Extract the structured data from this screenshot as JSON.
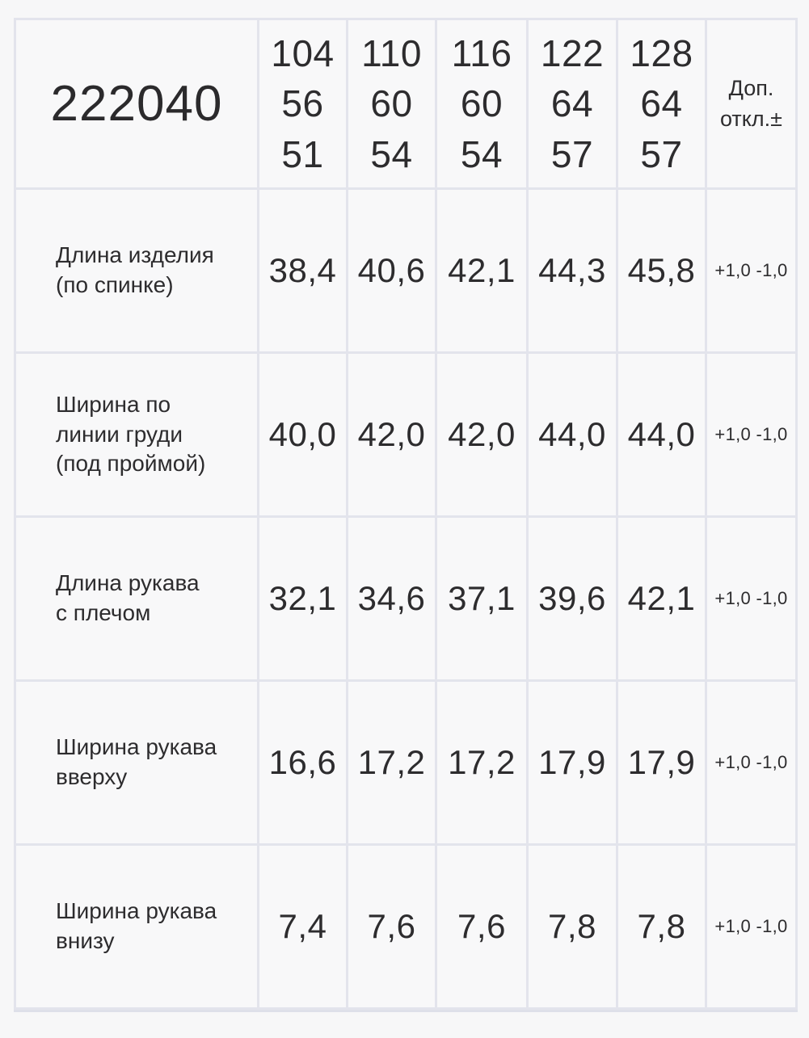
{
  "table": {
    "article": "222040",
    "header": {
      "sizes": [
        "104\n56\n51",
        "110\n60\n54",
        "116\n60\n54",
        "122\n64\n57",
        "128\n64\n57"
      ],
      "tolerance_label": "Доп.\nоткл.±"
    },
    "rows": [
      {
        "label": "Длина изделия\n(по спинке)",
        "values": [
          "38,4",
          "40,6",
          "42,1",
          "44,3",
          "45,8"
        ],
        "tolerance": "+1,0 -1,0"
      },
      {
        "label": "Ширина по\nлинии груди\n(под проймой)",
        "values": [
          "40,0",
          "42,0",
          "42,0",
          "44,0",
          "44,0"
        ],
        "tolerance": "+1,0 -1,0"
      },
      {
        "label": "Длина рукава\nс плечом",
        "values": [
          "32,1",
          "34,6",
          "37,1",
          "39,6",
          "42,1"
        ],
        "tolerance": "+1,0 -1,0"
      },
      {
        "label": "Ширина рукава\nвверху",
        "values": [
          "16,6",
          "17,2",
          "17,2",
          "17,9",
          "17,9"
        ],
        "tolerance": "+1,0 -1,0"
      },
      {
        "label": "Ширина рукава\nвнизу",
        "values": [
          "7,4",
          "7,6",
          "7,6",
          "7,8",
          "7,8"
        ],
        "tolerance": "+1,0 -1,0"
      }
    ],
    "colors": {
      "page_background": "#f7f7f8",
      "cell_background": "#f8f8f9",
      "border": "#e3e4ec",
      "text": "#2d2c2e"
    }
  }
}
